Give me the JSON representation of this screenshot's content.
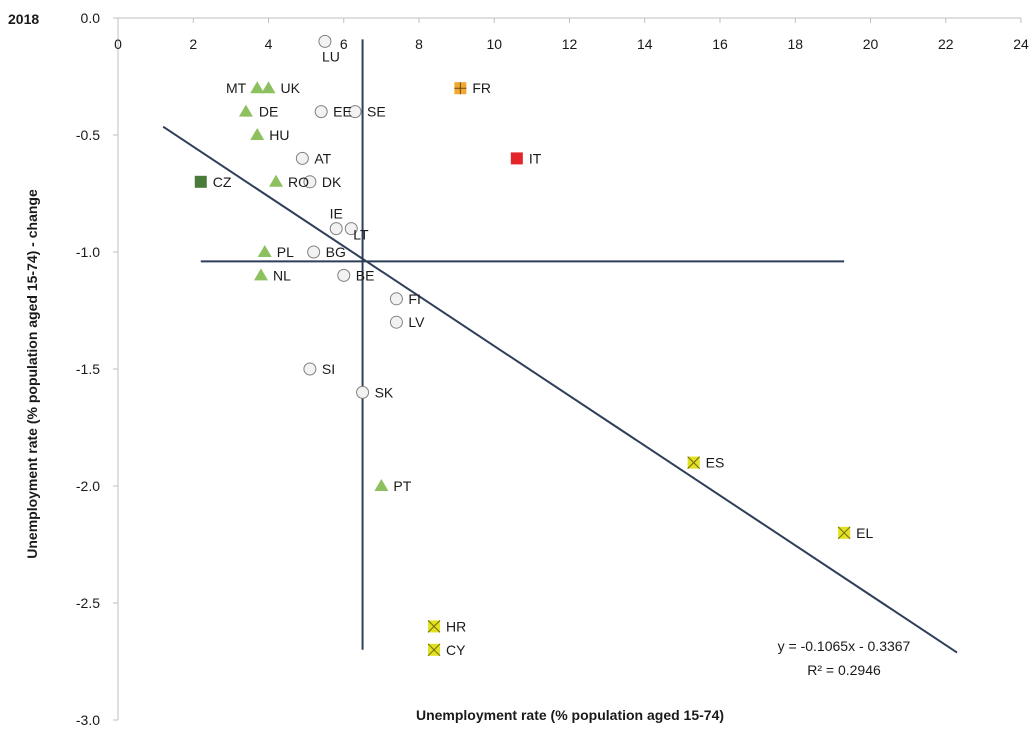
{
  "chart_data": {
    "type": "scatter",
    "year_label": "2018",
    "xlabel": "Unemployment rate (% population aged 15-74)",
    "ylabel": "Unemployment rate (% population aged 15-74) - change",
    "xlim": [
      0,
      24
    ],
    "ylim": [
      -3.0,
      0.0
    ],
    "x_ticks": [
      "0",
      "2",
      "4",
      "6",
      "8",
      "10",
      "12",
      "14",
      "16",
      "18",
      "20",
      "22",
      "24"
    ],
    "y_ticks": [
      "0.0",
      "-0.5",
      "-1.0",
      "-1.5",
      "-2.0",
      "-2.5",
      "-3.0"
    ],
    "x_tick_values": [
      0,
      2,
      4,
      6,
      8,
      10,
      12,
      14,
      16,
      18,
      20,
      22,
      24
    ],
    "y_tick_values": [
      0.0,
      -0.5,
      -1.0,
      -1.5,
      -2.0,
      -2.5,
      -3.0
    ],
    "colors": {
      "triangle": "#8dc05e",
      "circle_fill": "#f2f2f2",
      "circle_stroke": "#808080",
      "dark_square": "#4a7a3a",
      "red_square": "#e3242b",
      "orange_square": "#f0a830",
      "yellow_square": "#e3e020",
      "lines": "#2f3f5a"
    },
    "points": [
      {
        "label": "LU",
        "x": 5.5,
        "y": -0.1,
        "marker": "circle"
      },
      {
        "label": "MT",
        "x": 3.7,
        "y": -0.3,
        "marker": "triangle"
      },
      {
        "label": "UK",
        "x": 4.0,
        "y": -0.3,
        "marker": "triangle"
      },
      {
        "label": "FR",
        "x": 9.1,
        "y": -0.3,
        "marker": "orange-square"
      },
      {
        "label": "DE",
        "x": 3.4,
        "y": -0.4,
        "marker": "triangle"
      },
      {
        "label": "EE",
        "x": 5.4,
        "y": -0.4,
        "marker": "circle"
      },
      {
        "label": "SE",
        "x": 6.3,
        "y": -0.4,
        "marker": "circle"
      },
      {
        "label": "HU",
        "x": 3.7,
        "y": -0.5,
        "marker": "triangle"
      },
      {
        "label": "AT",
        "x": 4.9,
        "y": -0.6,
        "marker": "circle"
      },
      {
        "label": "IT",
        "x": 10.6,
        "y": -0.6,
        "marker": "red-square"
      },
      {
        "label": "CZ",
        "x": 2.2,
        "y": -0.7,
        "marker": "dark-square"
      },
      {
        "label": "RO",
        "x": 4.2,
        "y": -0.7,
        "marker": "triangle"
      },
      {
        "label": "DK",
        "x": 5.1,
        "y": -0.7,
        "marker": "circle"
      },
      {
        "label": "IE",
        "x": 5.8,
        "y": -0.9,
        "marker": "circle"
      },
      {
        "label": "LT",
        "x": 6.2,
        "y": -0.9,
        "marker": "circle"
      },
      {
        "label": "PL",
        "x": 3.9,
        "y": -1.0,
        "marker": "triangle"
      },
      {
        "label": "BG",
        "x": 5.2,
        "y": -1.0,
        "marker": "circle"
      },
      {
        "label": "NL",
        "x": 3.8,
        "y": -1.1,
        "marker": "triangle"
      },
      {
        "label": "BE",
        "x": 6.0,
        "y": -1.1,
        "marker": "circle"
      },
      {
        "label": "FI",
        "x": 7.4,
        "y": -1.2,
        "marker": "circle"
      },
      {
        "label": "LV",
        "x": 7.4,
        "y": -1.3,
        "marker": "circle"
      },
      {
        "label": "SI",
        "x": 5.1,
        "y": -1.5,
        "marker": "circle"
      },
      {
        "label": "SK",
        "x": 6.5,
        "y": -1.6,
        "marker": "circle"
      },
      {
        "label": "ES",
        "x": 15.3,
        "y": -1.9,
        "marker": "yellow-square"
      },
      {
        "label": "PT",
        "x": 7.0,
        "y": -2.0,
        "marker": "triangle"
      },
      {
        "label": "EL",
        "x": 19.3,
        "y": -2.2,
        "marker": "yellow-square"
      },
      {
        "label": "HR",
        "x": 8.4,
        "y": -2.6,
        "marker": "yellow-square"
      },
      {
        "label": "CY",
        "x": 8.4,
        "y": -2.7,
        "marker": "yellow-square"
      }
    ],
    "mean_lines": {
      "vertical_x": 6.5,
      "vertical_y_range": [
        -0.1,
        -2.7
      ],
      "horizontal_y": -1.04,
      "horizontal_x_range": [
        2.2,
        19.3
      ]
    },
    "trendline": {
      "slope": -0.1065,
      "intercept": -0.3367,
      "x_range": [
        1.2,
        22.3
      ],
      "equation": "y = -0.1065x - 0.3367",
      "r_squared": "R² = 0.2946"
    }
  }
}
